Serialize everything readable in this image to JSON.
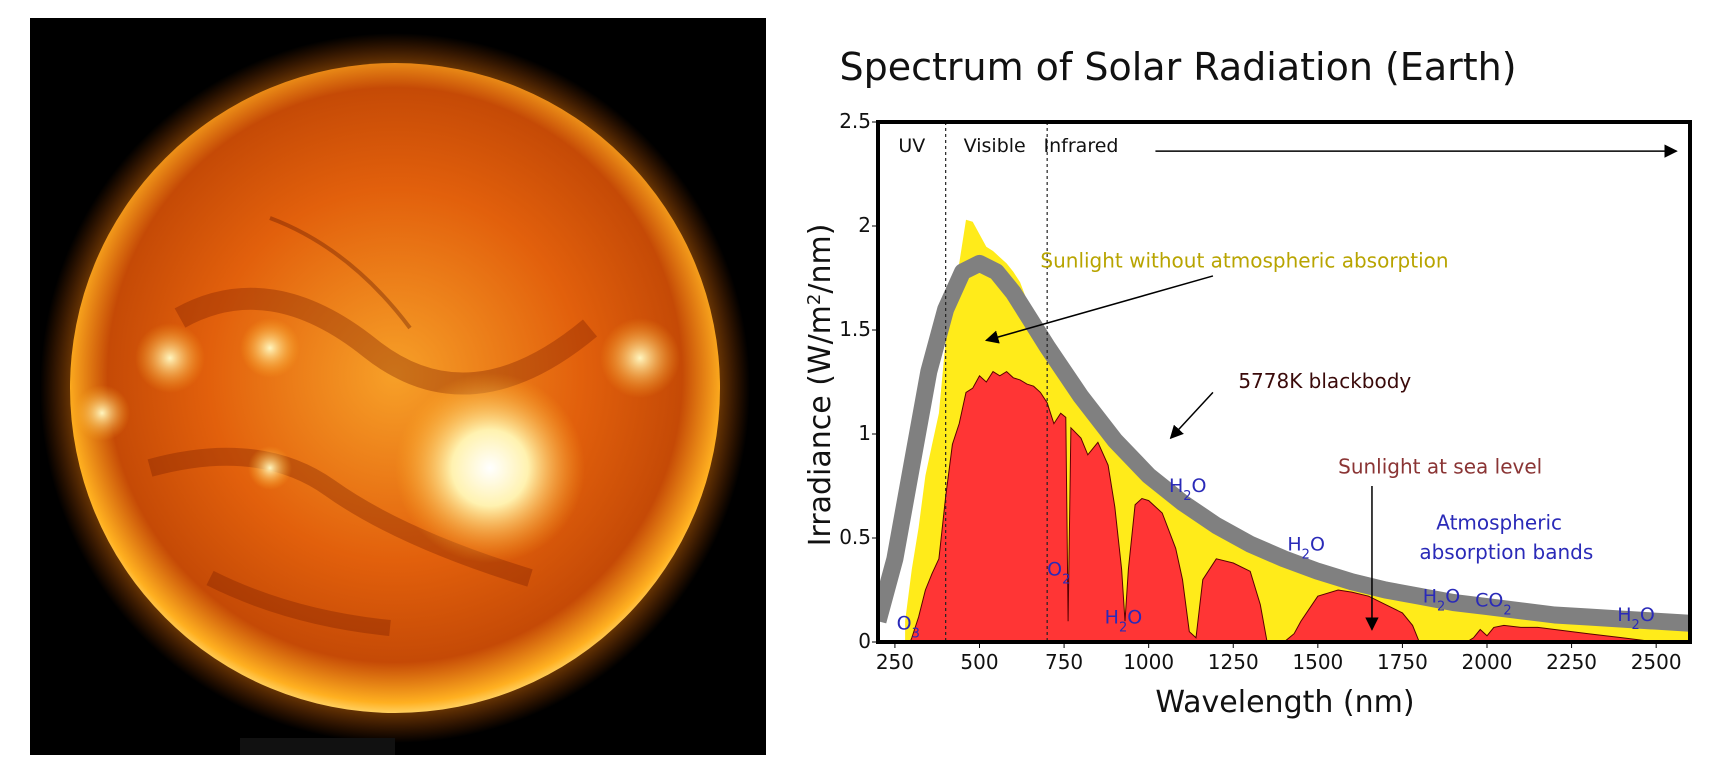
{
  "colors": {
    "background": "#ffffff",
    "sun_core": "#ffe070",
    "sun_mid": "#e86a10",
    "sun_edge": "#8a2000",
    "sky": "#000000",
    "extraterrestrial": "#ffeb1a",
    "sea_level": "#ff3535",
    "blackbody": "#808080",
    "ext_label": "#b8a400",
    "bb_label": "#3a0a0a",
    "sea_label": "#8a3434",
    "absorption_label": "#2a2ab8"
  },
  "chart_data": {
    "type": "area",
    "title": "Spectrum of Solar Radiation (Earth)",
    "xlabel": "Wavelength (nm)",
    "ylabel_main": "Irradiance (W/m",
    "ylabel_sup": "2",
    "ylabel_tail": "/nm)",
    "xlim": [
      200,
      2600
    ],
    "ylim": [
      0,
      2.5
    ],
    "xticks": [
      {
        "value": 250,
        "label": "250"
      },
      {
        "value": 500,
        "label": "500"
      },
      {
        "value": 750,
        "label": "750"
      },
      {
        "value": 1000,
        "label": "1000"
      },
      {
        "value": 1250,
        "label": "1250"
      },
      {
        "value": 1500,
        "label": "1500"
      },
      {
        "value": 1750,
        "label": "1750"
      },
      {
        "value": 2000,
        "label": "2000"
      },
      {
        "value": 2250,
        "label": "2250"
      },
      {
        "value": 2500,
        "label": "2500"
      }
    ],
    "yticks": [
      {
        "value": 0,
        "label": "0"
      },
      {
        "value": 0.5,
        "label": "0.5"
      },
      {
        "value": 1,
        "label": "1"
      },
      {
        "value": 1.5,
        "label": "1.5"
      },
      {
        "value": 2,
        "label": "2"
      },
      {
        "value": 2.5,
        "label": "2.5"
      }
    ],
    "regions": [
      {
        "name": "UV",
        "label_x": 300
      },
      {
        "name": "Visible",
        "label_x": 545
      },
      {
        "name": "Infrared",
        "label_x": 800
      }
    ],
    "region_boundaries": [
      400,
      700
    ],
    "infrared_arrow": {
      "x_start": 1020,
      "x_end": 2560,
      "y": 2.36
    },
    "series": [
      {
        "name": "Sunlight without atmospheric absorption",
        "x": [
          280,
          300,
          320,
          340,
          360,
          380,
          400,
          420,
          440,
          460,
          480,
          500,
          520,
          540,
          560,
          580,
          600,
          620,
          650,
          700,
          750,
          800,
          850,
          900,
          950,
          1000,
          1050,
          1100,
          1200,
          1300,
          1400,
          1500,
          1600,
          1700,
          1800,
          1900,
          2000,
          2100,
          2200,
          2300,
          2400,
          2500,
          2600
        ],
        "y": [
          0.1,
          0.35,
          0.55,
          0.8,
          0.95,
          1.1,
          1.45,
          1.72,
          1.82,
          2.03,
          2.02,
          1.96,
          1.9,
          1.88,
          1.85,
          1.82,
          1.78,
          1.73,
          1.6,
          1.45,
          1.32,
          1.18,
          1.07,
          0.97,
          0.88,
          0.8,
          0.72,
          0.65,
          0.55,
          0.46,
          0.39,
          0.33,
          0.29,
          0.25,
          0.21,
          0.18,
          0.15,
          0.13,
          0.11,
          0.1,
          0.09,
          0.08,
          0.07
        ]
      },
      {
        "name": "Sunlight at sea level",
        "x": [
          295,
          300,
          320,
          340,
          360,
          380,
          400,
          420,
          440,
          460,
          480,
          500,
          520,
          540,
          560,
          580,
          600,
          620,
          640,
          660,
          680,
          700,
          720,
          740,
          755,
          762,
          770,
          800,
          820,
          850,
          880,
          900,
          920,
          930,
          940,
          960,
          980,
          1000,
          1040,
          1080,
          1100,
          1120,
          1140,
          1160,
          1200,
          1250,
          1300,
          1330,
          1350,
          1400,
          1430,
          1450,
          1500,
          1560,
          1600,
          1650,
          1700,
          1750,
          1780,
          1800,
          1850,
          1900,
          1940,
          1960,
          1980,
          2000,
          2020,
          2050,
          2100,
          2150,
          2200,
          2250,
          2300,
          2350,
          2400,
          2450,
          2500
        ],
        "y": [
          0,
          0.02,
          0.12,
          0.25,
          0.33,
          0.4,
          0.7,
          0.95,
          1.05,
          1.2,
          1.22,
          1.28,
          1.25,
          1.3,
          1.28,
          1.3,
          1.27,
          1.26,
          1.24,
          1.23,
          1.2,
          1.15,
          1.05,
          1.1,
          1.08,
          0.1,
          1.03,
          0.98,
          0.9,
          0.96,
          0.85,
          0.65,
          0.35,
          0.1,
          0.35,
          0.66,
          0.69,
          0.68,
          0.62,
          0.45,
          0.3,
          0.05,
          0.02,
          0.3,
          0.4,
          0.38,
          0.34,
          0.18,
          0,
          0,
          0.04,
          0.1,
          0.22,
          0.25,
          0.24,
          0.22,
          0.18,
          0.14,
          0.08,
          0,
          0,
          0,
          0,
          0.02,
          0.06,
          0.03,
          0.07,
          0.08,
          0.07,
          0.07,
          0.06,
          0.05,
          0.04,
          0.03,
          0.02,
          0.01,
          0
        ]
      },
      {
        "name": "5778K blackbody",
        "temperature_k": 5778,
        "x_start": 200,
        "x_end": 2600,
        "peak_x": 500,
        "peak_y": 1.82,
        "x": [
          200,
          250,
          300,
          350,
          400,
          450,
          500,
          550,
          600,
          650,
          700,
          750,
          800,
          900,
          1000,
          1100,
          1200,
          1300,
          1400,
          1500,
          1600,
          1700,
          1800,
          1900,
          2000,
          2100,
          2200,
          2300,
          2400,
          2500,
          2600
        ],
        "y": [
          0.1,
          0.4,
          0.85,
          1.3,
          1.6,
          1.78,
          1.82,
          1.78,
          1.68,
          1.55,
          1.42,
          1.3,
          1.18,
          0.97,
          0.8,
          0.67,
          0.56,
          0.47,
          0.4,
          0.34,
          0.29,
          0.25,
          0.22,
          0.19,
          0.17,
          0.15,
          0.13,
          0.12,
          0.11,
          0.1,
          0.09
        ]
      }
    ],
    "annotations": [
      {
        "id": "ext",
        "text": "Sunlight without atmospheric absorption",
        "x": 680,
        "y": 1.8,
        "arrow_from": [
          1190,
          1.76
        ],
        "arrow_to": [
          520,
          1.45
        ]
      },
      {
        "id": "bb",
        "text": "5778K blackbody",
        "x": 1265,
        "y": 1.22,
        "arrow_from": [
          1190,
          1.2
        ],
        "arrow_to": [
          1065,
          0.98
        ]
      },
      {
        "id": "sea",
        "text": "Sunlight at sea level",
        "x": 1560,
        "y": 0.81,
        "arrow_from": [
          1660,
          0.75
        ],
        "arrow_to": [
          1660,
          0.06
        ]
      },
      {
        "id": "abs1",
        "text": "Atmospheric",
        "x": 1850,
        "y": 0.54
      },
      {
        "id": "abs2",
        "text": "absorption bands",
        "x": 1800,
        "y": 0.4
      }
    ],
    "absorption_labels": [
      {
        "main": "O",
        "sub": "3",
        "x": 255,
        "y": 0.06
      },
      {
        "main": "O",
        "sub": "2",
        "x": 700,
        "y": 0.32
      },
      {
        "main": "H",
        "sub": "2",
        "tail": "O",
        "x": 870,
        "y": 0.09
      },
      {
        "main": "H",
        "sub": "2",
        "tail": "O",
        "x": 1060,
        "y": 0.72
      },
      {
        "main": "H",
        "sub": "2",
        "tail": "O",
        "x": 1410,
        "y": 0.44
      },
      {
        "main": "H",
        "sub": "2",
        "tail": "O",
        "x": 1810,
        "y": 0.19
      },
      {
        "main": "CO",
        "sub": "2",
        "x": 1965,
        "y": 0.17
      },
      {
        "main": "H",
        "sub": "2",
        "tail": "O",
        "x": 2385,
        "y": 0.1
      }
    ]
  }
}
